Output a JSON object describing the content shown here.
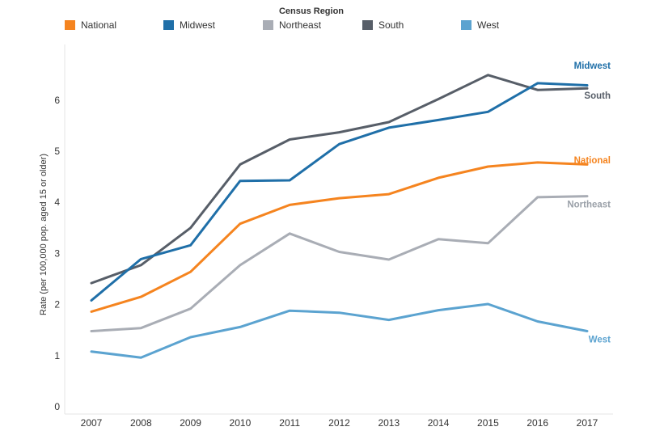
{
  "chart_data": {
    "type": "line",
    "legend_title": "Census Region",
    "legend_placement": "top",
    "ylabel": "Rate (per 100,000 pop. aged 15 or older)",
    "xlabel": "",
    "ylim": [
      0,
      7
    ],
    "yticks": [
      0,
      1,
      2,
      3,
      4,
      5,
      6
    ],
    "categories": [
      "2007",
      "2008",
      "2009",
      "2010",
      "2011",
      "2012",
      "2013",
      "2014",
      "2015",
      "2016",
      "2017"
    ],
    "grid": false,
    "series": [
      {
        "name": "National",
        "color": "#f5841f",
        "values": [
          1.86,
          2.15,
          2.64,
          3.58,
          3.95,
          4.08,
          4.16,
          4.48,
          4.7,
          4.78,
          4.74
        ]
      },
      {
        "name": "Midwest",
        "color": "#1f6fa8",
        "values": [
          2.08,
          2.89,
          3.16,
          4.42,
          4.43,
          5.14,
          5.46,
          5.61,
          5.77,
          6.33,
          6.29
        ]
      },
      {
        "name": "Northeast",
        "color": "#a9adb5",
        "values": [
          1.48,
          1.54,
          1.92,
          2.77,
          3.39,
          3.03,
          2.88,
          3.28,
          3.2,
          4.1,
          4.12
        ]
      },
      {
        "name": "South",
        "color": "#575e68",
        "values": [
          2.42,
          2.77,
          3.5,
          4.74,
          5.23,
          5.37,
          5.57,
          6.02,
          6.49,
          6.2,
          6.23
        ]
      },
      {
        "name": "West",
        "color": "#5ba3d0",
        "values": [
          1.08,
          0.96,
          1.36,
          1.56,
          1.88,
          1.84,
          1.7,
          1.89,
          2.01,
          1.67,
          1.48
        ]
      }
    ]
  }
}
